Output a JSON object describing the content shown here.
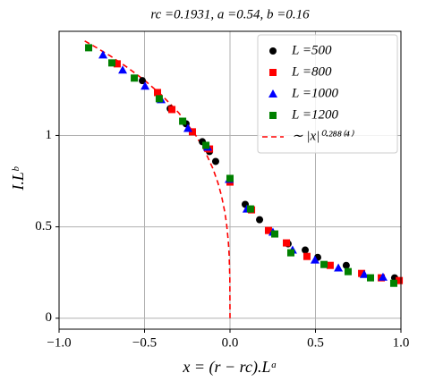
{
  "chart_data": {
    "type": "scatter",
    "title": "rc =0.1931, a =0.54, b =0.16",
    "xlabel": "x = (r − rc).Lᵃ",
    "ylabel": "I.Lᵇ",
    "xlim": [
      -1,
      1
    ],
    "ylim": [
      -0.06,
      1.57
    ],
    "xticks": [
      {
        "value": -1,
        "label": "−1.0"
      },
      {
        "value": -0.5,
        "label": "−0.5"
      },
      {
        "value": 0,
        "label": "0.0"
      },
      {
        "value": 0.5,
        "label": "0.5"
      },
      {
        "value": 1,
        "label": "1.0"
      }
    ],
    "yticks": [
      0,
      0.5,
      1
    ],
    "grid": true,
    "legend": "upper right",
    "series": [
      {
        "name": "L =500",
        "color": "#000000",
        "marker": "circle",
        "x": [
          -0.513,
          -0.35,
          -0.257,
          -0.162,
          -0.12,
          -0.084,
          0.089,
          0.173,
          0.34,
          0.44,
          0.513,
          0.68,
          0.963
        ],
        "values": [
          1.3,
          1.147,
          1.064,
          0.966,
          0.912,
          0.858,
          0.623,
          0.539,
          0.407,
          0.373,
          0.333,
          0.289,
          0.221
        ]
      },
      {
        "name": "L =800",
        "color": "#ff0000",
        "marker": "square",
        "x": [
          -0.66,
          -0.424,
          -0.34,
          -0.22,
          -0.12,
          0.0,
          0.126,
          0.225,
          0.33,
          0.45,
          0.586,
          0.77,
          0.885,
          0.99
        ],
        "values": [
          1.392,
          1.235,
          1.142,
          1.02,
          0.926,
          0.745,
          0.593,
          0.48,
          0.412,
          0.338,
          0.289,
          0.245,
          0.221,
          0.206
        ]
      },
      {
        "name": "L =1000",
        "color": "#0000ff",
        "marker": "triangle",
        "x": [
          -0.743,
          -0.628,
          -0.497,
          -0.403,
          -0.246,
          -0.131,
          -0.005,
          0.099,
          0.251,
          0.366,
          0.497,
          0.634,
          0.785,
          0.895
        ],
        "values": [
          1.441,
          1.358,
          1.27,
          1.196,
          1.039,
          0.936,
          0.76,
          0.598,
          0.471,
          0.373,
          0.319,
          0.275,
          0.24,
          0.225
        ]
      },
      {
        "name": "L =1200",
        "color": "#008000",
        "marker": "square",
        "x": [
          -0.827,
          -0.691,
          -0.56,
          -0.414,
          -0.277,
          -0.141,
          0.0,
          0.12,
          0.262,
          0.356,
          0.55,
          0.691,
          0.822,
          0.958
        ],
        "values": [
          1.48,
          1.397,
          1.314,
          1.201,
          1.078,
          0.946,
          0.765,
          0.598,
          0.461,
          0.358,
          0.294,
          0.255,
          0.221,
          0.191
        ]
      },
      {
        "name": "∼ |x|⁰·²⁸⁸⁽⁴⁾",
        "color": "#ff0000",
        "marker": "dashed-line",
        "x": [
          -0.85,
          -0.8,
          -0.7,
          -0.6,
          -0.5,
          -0.4,
          -0.3,
          -0.2,
          -0.15,
          -0.1,
          -0.07,
          -0.05,
          -0.03,
          -0.02,
          -0.01,
          -0.005,
          -0.001,
          0
        ],
        "values": [
          1.517,
          1.491,
          1.435,
          1.372,
          1.302,
          1.221,
          1.124,
          1.0,
          0.921,
          0.819,
          0.739,
          0.671,
          0.579,
          0.515,
          0.422,
          0.346,
          0.218,
          0
        ]
      }
    ]
  }
}
